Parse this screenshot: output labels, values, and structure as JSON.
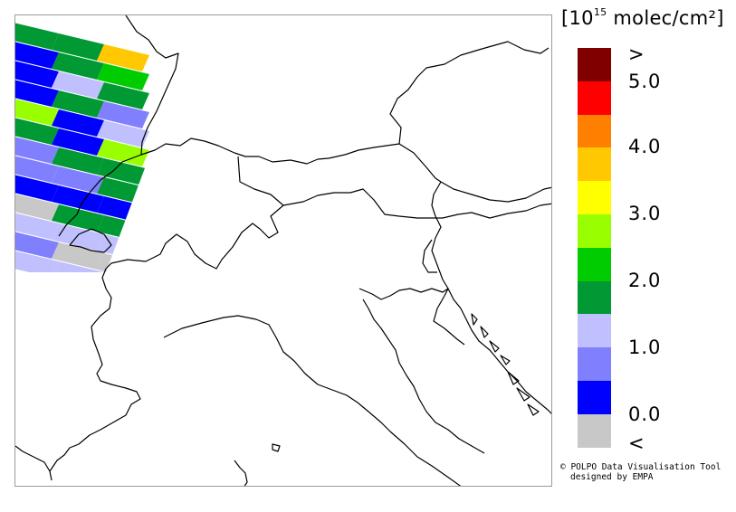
{
  "unit": {
    "prefix": "[10",
    "exponent": "15",
    "suffix": " molec/cm²]"
  },
  "legend": {
    "colors": [
      "#800000",
      "#ff0000",
      "#ff8000",
      "#ffc800",
      "#ffff00",
      "#99ff00",
      "#00cc00",
      "#009933",
      "#c0c0ff",
      "#8080ff",
      "#0000ff",
      "#c8c8c8"
    ],
    "ticks": [
      ">",
      "5.0",
      "4.0",
      "3.0",
      "2.0",
      "1.0",
      "0.0",
      "<"
    ]
  },
  "credit": {
    "line1": "© POLPO Data Visualisation Tool",
    "line2": "designed by EMPA"
  },
  "swath_colors": {
    "dark_blue": "#0000ff",
    "med_blue": "#8080ff",
    "light_blue": "#c0c0ff",
    "dark_green": "#009933",
    "green": "#00cc00",
    "yellow_green": "#99ff00",
    "orange_yellow": "#ffc800",
    "gray": "#c8c8c8"
  }
}
